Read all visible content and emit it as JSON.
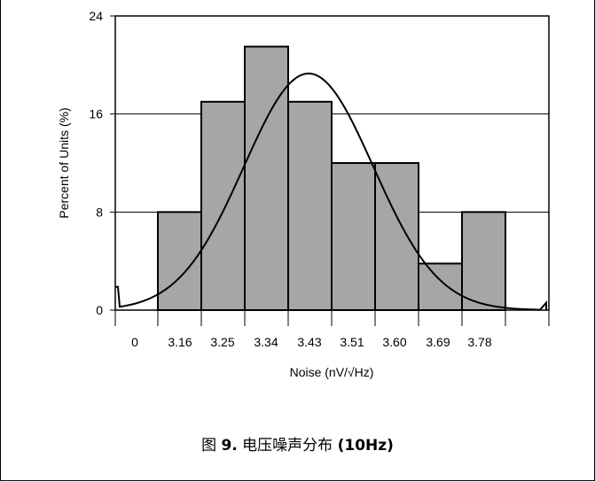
{
  "caption": {
    "prefix": "图 ",
    "number": "9.",
    "text": " 电压噪声分布 ",
    "suffix": "(10Hz)"
  },
  "chart_data": {
    "type": "bar",
    "xlabel": "Noise (nV/√Hz)",
    "ylabel": "Percent of Units (%)",
    "ylim": [
      0,
      24
    ],
    "yticks": [
      "0",
      "8",
      "16",
      "24"
    ],
    "grid": true,
    "x_tick_labels": [
      "0",
      "3.16",
      "3.25",
      "3.34",
      "3.43",
      "3.51",
      "3.60",
      "3.69",
      "3.78"
    ],
    "categories": [
      "3.16",
      "3.25",
      "3.34",
      "3.43",
      "3.51",
      "3.60",
      "3.69",
      "3.78"
    ],
    "values": [
      8,
      17,
      21.5,
      17,
      12,
      12,
      3.8,
      8
    ],
    "bar_color": "#a6a6a6",
    "fit_curve": {
      "type": "normal",
      "peak_value": 19.3,
      "tail_values": [
        1.9,
        0.6
      ]
    }
  }
}
